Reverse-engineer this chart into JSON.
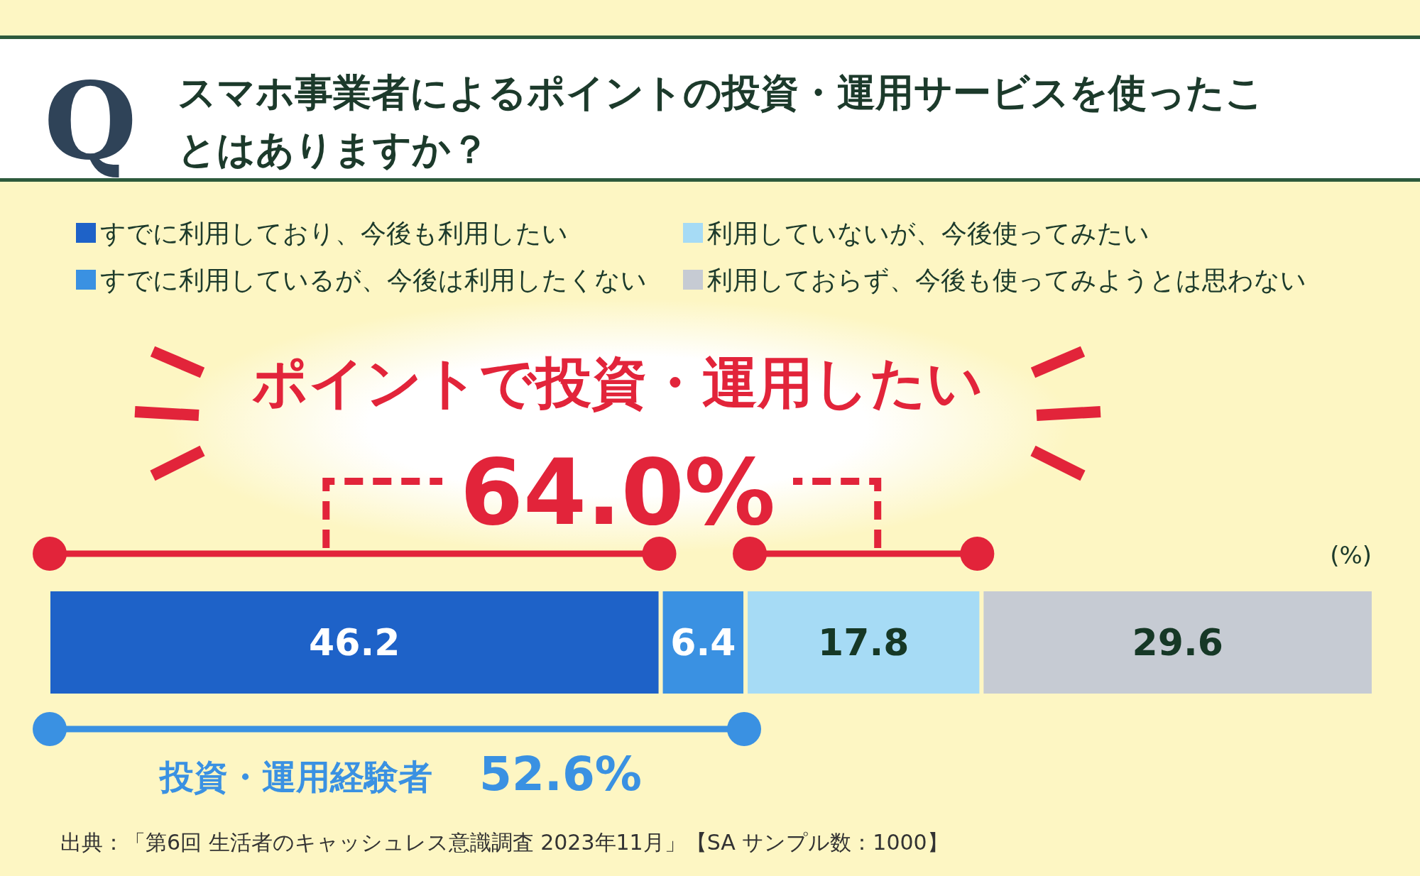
{
  "chart_data": {
    "type": "bar",
    "orientation": "horizontal",
    "stacked": true,
    "title": "スマホ事業者によるポイントの投資・運用サービスを使ったことはありますか？",
    "categories": [
      null
    ],
    "series": [
      {
        "name": "すでに利用しており、今後も利用したい",
        "color": "#1e62c8",
        "values": [
          46.2
        ]
      },
      {
        "name": "すでに利用しているが、今後は利用したくない",
        "color": "#3a91e2",
        "values": [
          6.4
        ]
      },
      {
        "name": "利用していないが、今後使ってみたい",
        "color": "#a6dbf5",
        "values": [
          17.8
        ]
      },
      {
        "name": "利用しておらず、今後も使ってみようとは思わない",
        "color": "#c6cbd3",
        "values": [
          29.6
        ]
      }
    ],
    "data_labels": true,
    "legend": "top",
    "tick_labels": false,
    "annotations": [
      "Q",
      "ポイントで投資・運用したい",
      "64.0%",
      "(%)",
      "投資・運用経験者",
      "52.6%",
      "出典：「第6回 生活者のキャッシュレス意識調査 2023年11月」【SA サンプル数：1000】"
    ]
  }
}
